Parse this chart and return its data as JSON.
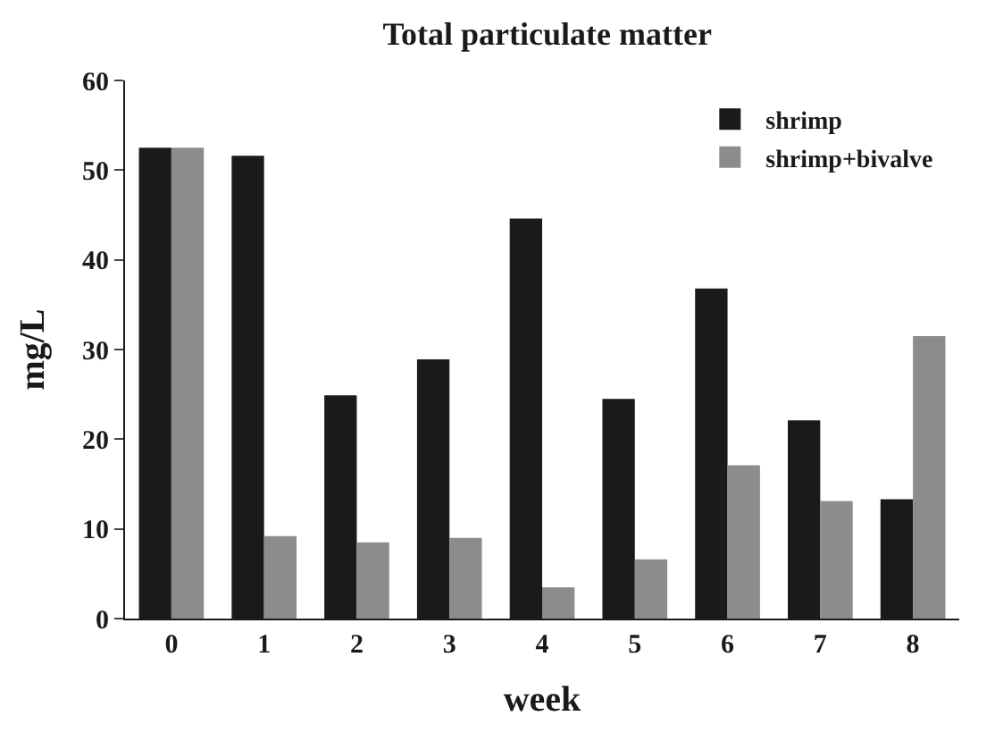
{
  "chart_data": {
    "type": "bar",
    "title": "Total particulate matter",
    "xlabel": "week",
    "ylabel": "mg/L",
    "categories": [
      "0",
      "1",
      "2",
      "3",
      "4",
      "5",
      "6",
      "7",
      "8"
    ],
    "series": [
      {
        "name": "shrimp",
        "color": "#1a1a1a",
        "values": [
          52.5,
          51.6,
          24.9,
          28.9,
          44.6,
          24.5,
          36.8,
          22.1,
          13.3
        ]
      },
      {
        "name": "shrimp+bivalve",
        "color": "#8c8c8c",
        "values": [
          52.5,
          9.2,
          8.5,
          9.0,
          3.5,
          6.6,
          17.1,
          13.1,
          31.5
        ]
      }
    ],
    "ylim": [
      0,
      60
    ],
    "yticks": [
      0,
      10,
      20,
      30,
      40,
      50,
      60
    ],
    "legend": "top right"
  }
}
